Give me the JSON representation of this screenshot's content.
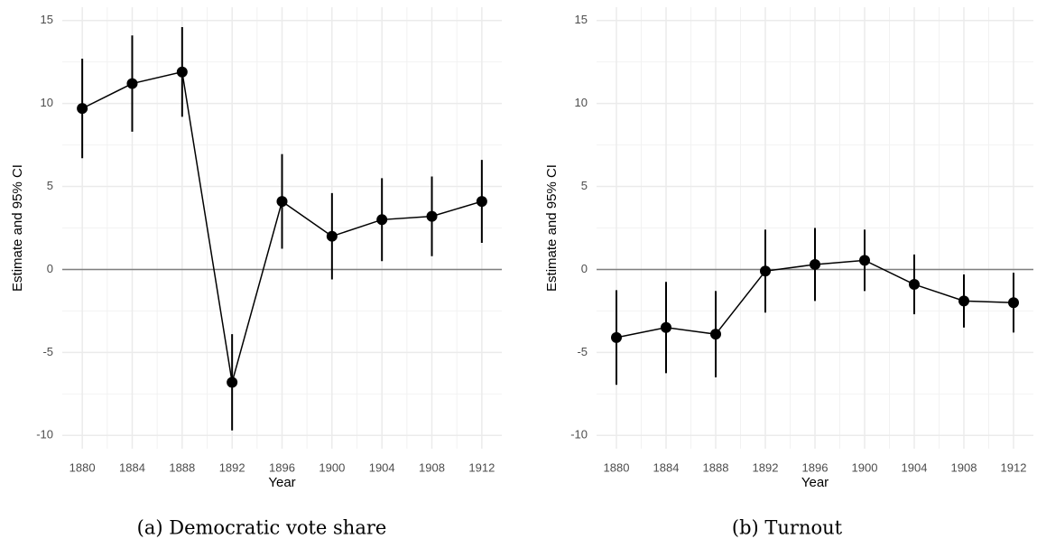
{
  "chart_data": [
    {
      "type": "errorbar",
      "caption": "(a) Democratic vote share",
      "xlabel": "Year",
      "ylabel": "Estimate and 95% CI",
      "x": [
        1880,
        1884,
        1888,
        1892,
        1896,
        1900,
        1904,
        1908,
        1912
      ],
      "values": [
        9.7,
        11.2,
        11.9,
        -6.8,
        4.1,
        2.0,
        3.0,
        3.2,
        4.1
      ],
      "errors": [
        3.0,
        2.9,
        2.7,
        2.9,
        2.85,
        2.6,
        2.5,
        2.4,
        2.5
      ],
      "color": "#000000",
      "hline": 0,
      "grid": true,
      "xlim": [
        1878.4,
        1913.6
      ],
      "xticks": [
        1880,
        1884,
        1888,
        1892,
        1896,
        1900,
        1904,
        1908,
        1912
      ],
      "ylim": [
        -10.8,
        15.8
      ],
      "yticks": [
        -10,
        -5,
        0,
        5,
        10,
        15
      ]
    },
    {
      "type": "errorbar",
      "caption": "(b) Turnout",
      "xlabel": "Year",
      "ylabel": "Estimate and 95% CI",
      "x": [
        1880,
        1884,
        1888,
        1892,
        1896,
        1900,
        1904,
        1908,
        1912
      ],
      "values": [
        -4.1,
        -3.5,
        -3.9,
        -0.1,
        0.3,
        0.55,
        -0.9,
        -1.9,
        -2.0
      ],
      "errors": [
        2.85,
        2.75,
        2.6,
        2.5,
        2.2,
        1.85,
        1.8,
        1.6,
        1.8
      ],
      "color": "#000000",
      "hline": 0,
      "grid": true,
      "xlim": [
        1878.4,
        1913.6
      ],
      "xticks": [
        1880,
        1884,
        1888,
        1892,
        1896,
        1900,
        1904,
        1908,
        1912
      ],
      "ylim": [
        -10.8,
        15.8
      ],
      "yticks": [
        -10,
        -5,
        0,
        5,
        10,
        15
      ]
    }
  ]
}
